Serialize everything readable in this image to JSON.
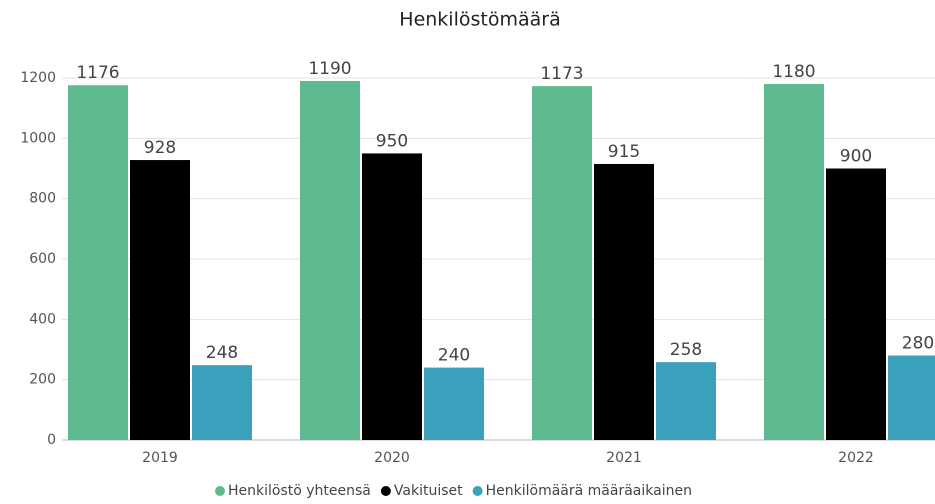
{
  "chart_data": {
    "type": "bar",
    "title": "Henkilöstömäärä",
    "categories": [
      "2019",
      "2020",
      "2021",
      "2022"
    ],
    "series": [
      {
        "name": "Henkilöstö yhteensä",
        "color": "#5dbb8f",
        "values": [
          1176,
          1190,
          1173,
          1180
        ]
      },
      {
        "name": "Vakituiset",
        "color": "#000000",
        "values": [
          928,
          950,
          915,
          900
        ]
      },
      {
        "name": "Henkilömäärä määräaikainen",
        "color": "#3aa0bb",
        "values": [
          248,
          240,
          258,
          280
        ]
      }
    ],
    "ylim": [
      0,
      1200
    ],
    "yticks": [
      0,
      200,
      400,
      600,
      800,
      1000,
      1200
    ],
    "grid": true,
    "legend": "bottom"
  }
}
